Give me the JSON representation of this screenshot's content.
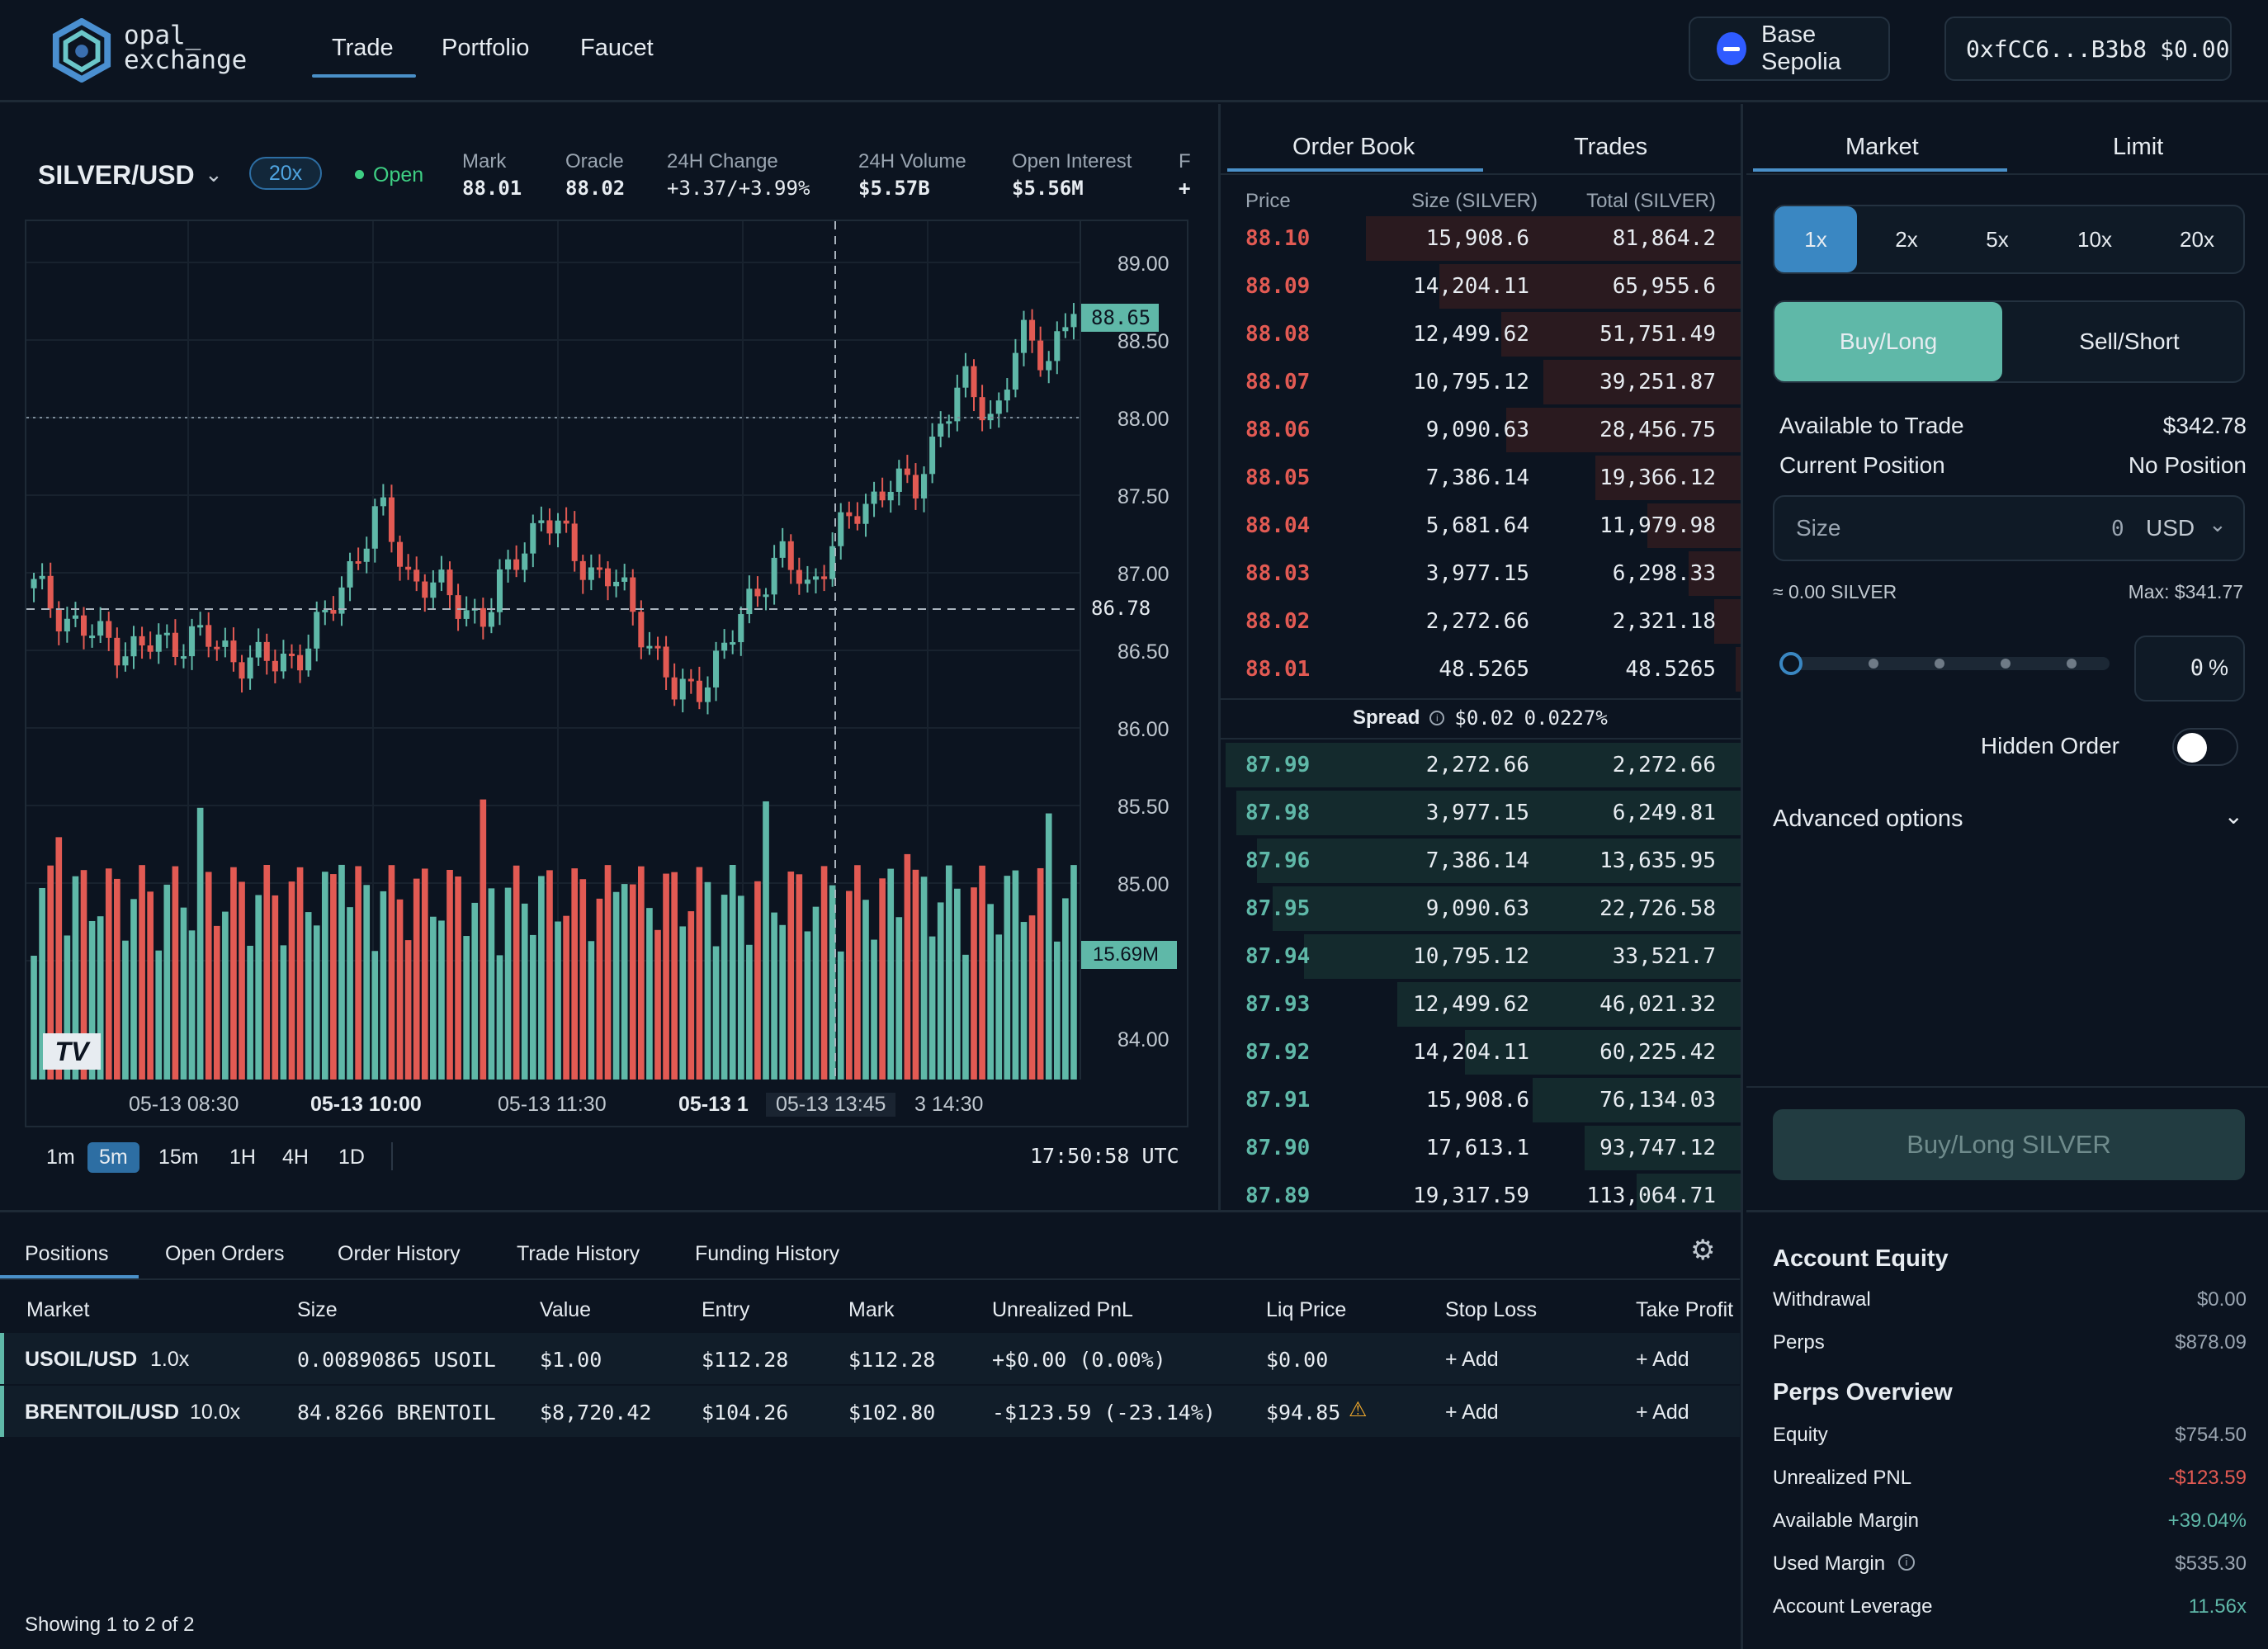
{
  "brand": {
    "line1": "opal_",
    "line2": "exchange"
  },
  "nav": {
    "trade": "Trade",
    "portfolio": "Portfolio",
    "faucet": "Faucet"
  },
  "network": {
    "label": "Base Sepolia"
  },
  "wallet": {
    "address": "0xfCC6...B3b8",
    "balance": "$0.00"
  },
  "market": {
    "symbol": "SILVER/USD",
    "leverage": "20x",
    "status": "Open",
    "stats": [
      {
        "label": "Mark",
        "value": "88.01"
      },
      {
        "label": "Oracle",
        "value": "88.02"
      },
      {
        "label": "24H Change",
        "value": "+3.37/+3.99%"
      },
      {
        "label": "24H Volume",
        "value": "$5.57B"
      },
      {
        "label": "Open Interest",
        "value": "$5.56M"
      },
      {
        "label": "F",
        "value": "+"
      }
    ]
  },
  "chart": {
    "y_ticks": [
      "89.00",
      "88.50",
      "88.00",
      "87.50",
      "87.00",
      "86.50",
      "86.00",
      "85.50",
      "85.00",
      "84.00"
    ],
    "price_tag": "88.65",
    "crosshair_price": "86.78",
    "volume_tag": "15.69M",
    "x_ticks": [
      "05-13 08:30",
      "05-13 10:00",
      "05-13 11:30",
      "05-13 1",
      "05-13 13:45",
      "3 14:30"
    ],
    "timeframes": [
      "1m",
      "5m",
      "15m",
      "1H",
      "4H",
      "1D"
    ],
    "active_timeframe": "5m",
    "clock": "17:50:58 UTC",
    "colors": {
      "up": "#5fb8a8",
      "down": "#e25a53"
    }
  },
  "orderbook": {
    "tabs": [
      "Order Book",
      "Trades"
    ],
    "headers": {
      "price": "Price",
      "size": "Size (SILVER)",
      "total": "Total (SILVER)"
    },
    "asks": [
      {
        "price": "88.10",
        "size": "15,908.6",
        "total": "81,864.2",
        "depth": 0.72
      },
      {
        "price": "88.09",
        "size": "14,204.11",
        "total": "65,955.6",
        "depth": 0.58
      },
      {
        "price": "88.08",
        "size": "12,499.62",
        "total": "51,751.49",
        "depth": 0.46
      },
      {
        "price": "88.07",
        "size": "10,795.12",
        "total": "39,251.87",
        "depth": 0.38
      },
      {
        "price": "88.06",
        "size": "9,090.63",
        "total": "28,456.75",
        "depth": 0.45
      },
      {
        "price": "88.05",
        "size": "7,386.14",
        "total": "19,366.12",
        "depth": 0.28
      },
      {
        "price": "88.04",
        "size": "5,681.64",
        "total": "11,979.98",
        "depth": 0.18
      },
      {
        "price": "88.03",
        "size": "3,977.15",
        "total": "6,298.33",
        "depth": 0.1
      },
      {
        "price": "88.02",
        "size": "2,272.66",
        "total": "2,321.18",
        "depth": 0.05
      },
      {
        "price": "88.01",
        "size": "48.5265",
        "total": "48.5265",
        "depth": 0.01
      }
    ],
    "spread": {
      "label": "Spread",
      "value": "$0.02",
      "percent": "0.0227%"
    },
    "bids": [
      {
        "price": "87.99",
        "size": "2,272.66",
        "total": "2,272.66",
        "depth": 0.99
      },
      {
        "price": "87.98",
        "size": "3,977.15",
        "total": "6,249.81",
        "depth": 0.97
      },
      {
        "price": "87.96",
        "size": "7,386.14",
        "total": "13,635.95",
        "depth": 0.93
      },
      {
        "price": "87.95",
        "size": "9,090.63",
        "total": "22,726.58",
        "depth": 0.9
      },
      {
        "price": "87.94",
        "size": "10,795.12",
        "total": "33,521.7",
        "depth": 0.84
      },
      {
        "price": "87.93",
        "size": "12,499.62",
        "total": "46,021.32",
        "depth": 0.66
      },
      {
        "price": "87.92",
        "size": "14,204.11",
        "total": "60,225.42",
        "depth": 0.53
      },
      {
        "price": "87.91",
        "size": "15,908.6",
        "total": "76,134.03",
        "depth": 0.4
      },
      {
        "price": "87.90",
        "size": "17,613.1",
        "total": "93,747.12",
        "depth": 0.3
      },
      {
        "price": "87.89",
        "size": "19,317.59",
        "total": "113,064.71",
        "depth": 0.2
      }
    ]
  },
  "order_form": {
    "tabs": [
      "Market",
      "Limit"
    ],
    "leverage_options": [
      "1x",
      "2x",
      "5x",
      "10x",
      "20x"
    ],
    "selected_leverage": "1x",
    "sides": [
      "Buy/Long",
      "Sell/Short"
    ],
    "available_label": "Available to Trade",
    "available_value": "$342.78",
    "position_label": "Current Position",
    "position_value": "No Position",
    "size_label": "Size",
    "size_value": "0",
    "size_unit": "USD",
    "approx": "≈ 0.00 SILVER",
    "max": "Max: $341.77",
    "slider_percent": "0",
    "percent_sign": "%",
    "hidden_order": "Hidden Order",
    "advanced": "Advanced options",
    "submit": "Buy/Long SILVER"
  },
  "positions_panel": {
    "tabs": [
      "Positions",
      "Open Orders",
      "Order History",
      "Trade History",
      "Funding History"
    ],
    "headers": [
      "Market",
      "Size",
      "Value",
      "Entry",
      "Mark",
      "Unrealized PnL",
      "Liq Price",
      "Stop Loss",
      "Take Profit"
    ],
    "rows": [
      {
        "market": "USOIL/USD",
        "lev": "1.0x",
        "size": "0.00890865 USOIL",
        "value": "$1.00",
        "entry": "$112.28",
        "mark": "$112.28",
        "pnl": "+$0.00 (0.00%)",
        "pnl_dir": "up",
        "liq": "$0.00",
        "sl": "+ Add",
        "tp": "+ Add"
      },
      {
        "market": "BRENTOIL/USD",
        "lev": "10.0x",
        "size": "84.8266 BRENTOIL",
        "value": "$8,720.42",
        "entry": "$104.26",
        "mark": "$102.80",
        "pnl": "-$123.59 (-23.14%)",
        "pnl_dir": "down",
        "liq": "$94.85",
        "sl": "+ Add",
        "tp": "+ Add"
      }
    ],
    "footer": "Showing 1 to 2 of 2"
  },
  "account": {
    "title": "Account Equity",
    "withdrawal_label": "Withdrawal",
    "withdrawal": "$0.00",
    "perps_label": "Perps",
    "perps": "$878.09",
    "overview_title": "Perps Overview",
    "equity_label": "Equity",
    "equity": "$754.50",
    "upnl_label": "Unrealized PNL",
    "upnl": "-$123.59",
    "avail_label": "Available Margin",
    "avail": "+39.04%",
    "used_label": "Used Margin",
    "used": "$535.30",
    "lev_label": "Account Leverage",
    "lev": "11.56x"
  }
}
